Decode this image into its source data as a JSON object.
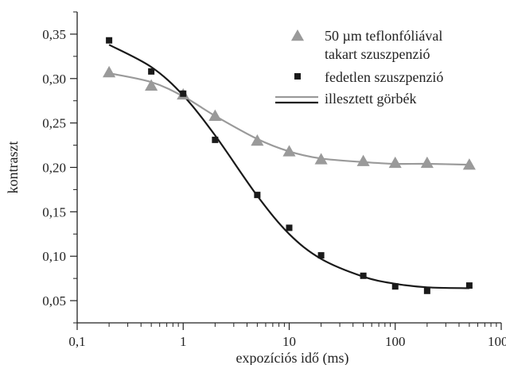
{
  "chart_data": {
    "type": "scatter",
    "xscale": "log",
    "xlim": [
      0.1,
      1000
    ],
    "ylim": [
      0.025,
      0.375
    ],
    "xlabel": "expozíciós idő (ms)",
    "ylabel": "kontraszt",
    "x_ticks": [
      0.1,
      1,
      10,
      100,
      1000
    ],
    "x_tick_labels": [
      "0,1",
      "1",
      "10",
      "100",
      "1000"
    ],
    "y_ticks": [
      0.05,
      0.1,
      0.15,
      0.2,
      0.25,
      0.3,
      0.35
    ],
    "y_tick_labels": [
      "0,05",
      "0,10",
      "0,15",
      "0,20",
      "0,25",
      "0,30",
      "0,35"
    ],
    "grid": false,
    "legend_position": "top-right",
    "series": [
      {
        "key": "teflon",
        "name_lines": [
          "50 µm teflonfóliával",
          "takart szuszpenzió"
        ],
        "marker": "triangle",
        "color": "#9a9a9a",
        "points": [
          {
            "x": 0.2,
            "y": 0.307
          },
          {
            "x": 0.5,
            "y": 0.292
          },
          {
            "x": 1,
            "y": 0.282
          },
          {
            "x": 2,
            "y": 0.258
          },
          {
            "x": 5,
            "y": 0.23
          },
          {
            "x": 10,
            "y": 0.218
          },
          {
            "x": 20,
            "y": 0.209
          },
          {
            "x": 50,
            "y": 0.207
          },
          {
            "x": 100,
            "y": 0.205
          },
          {
            "x": 200,
            "y": 0.205
          },
          {
            "x": 500,
            "y": 0.203
          }
        ]
      },
      {
        "key": "uncovered",
        "name_lines": [
          "fedetlen szuszpenzió"
        ],
        "marker": "square",
        "color": "#1a1a1a",
        "points": [
          {
            "x": 0.2,
            "y": 0.343
          },
          {
            "x": 0.5,
            "y": 0.308
          },
          {
            "x": 1,
            "y": 0.283
          },
          {
            "x": 2,
            "y": 0.231
          },
          {
            "x": 5,
            "y": 0.169
          },
          {
            "x": 10,
            "y": 0.132
          },
          {
            "x": 20,
            "y": 0.101
          },
          {
            "x": 50,
            "y": 0.078
          },
          {
            "x": 100,
            "y": 0.066
          },
          {
            "x": 200,
            "y": 0.061
          },
          {
            "x": 500,
            "y": 0.067
          }
        ]
      }
    ],
    "fit_curves": {
      "legend_label": "illesztett görbék",
      "colors": [
        "#9a9a9a",
        "#1a1a1a"
      ],
      "curves": [
        {
          "series": "teflon",
          "points": [
            {
              "x": 0.2,
              "y": 0.306
            },
            {
              "x": 0.5,
              "y": 0.296
            },
            {
              "x": 1,
              "y": 0.28
            },
            {
              "x": 2,
              "y": 0.258
            },
            {
              "x": 5,
              "y": 0.232
            },
            {
              "x": 10,
              "y": 0.218
            },
            {
              "x": 20,
              "y": 0.21
            },
            {
              "x": 50,
              "y": 0.206
            },
            {
              "x": 100,
              "y": 0.204
            },
            {
              "x": 200,
              "y": 0.204
            },
            {
              "x": 500,
              "y": 0.203
            }
          ]
        },
        {
          "series": "uncovered",
          "points": [
            {
              "x": 0.2,
              "y": 0.338
            },
            {
              "x": 0.5,
              "y": 0.313
            },
            {
              "x": 1,
              "y": 0.281
            },
            {
              "x": 2,
              "y": 0.236
            },
            {
              "x": 5,
              "y": 0.168
            },
            {
              "x": 10,
              "y": 0.125
            },
            {
              "x": 20,
              "y": 0.097
            },
            {
              "x": 50,
              "y": 0.077
            },
            {
              "x": 100,
              "y": 0.069
            },
            {
              "x": 200,
              "y": 0.065
            },
            {
              "x": 500,
              "y": 0.064
            }
          ]
        }
      ]
    }
  }
}
